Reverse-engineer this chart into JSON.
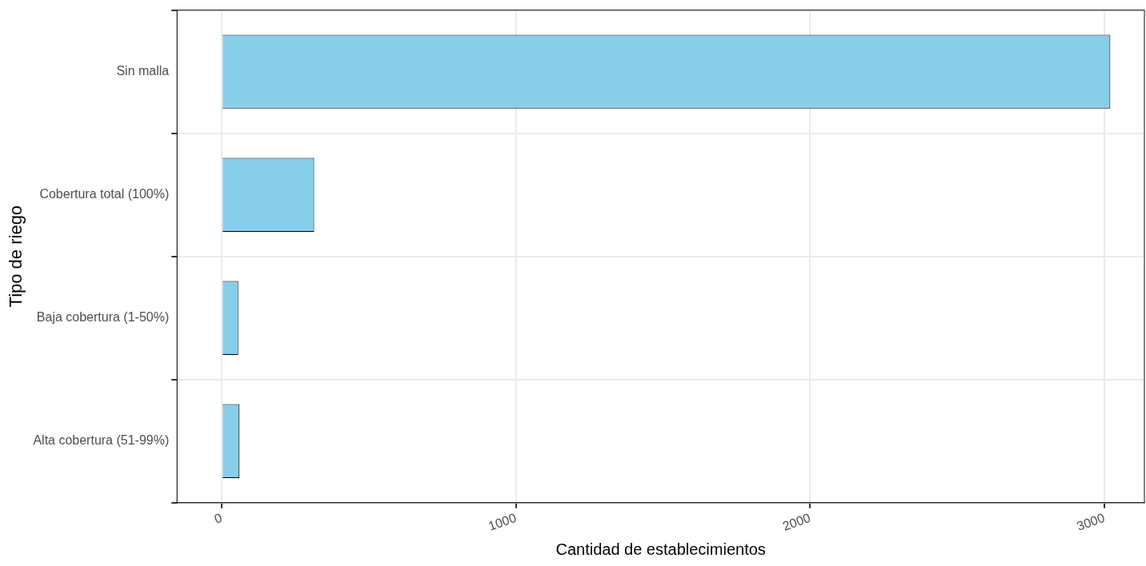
{
  "chart_data": {
    "type": "bar",
    "orientation": "horizontal",
    "xlabel": "Cantidad de establecimientos",
    "ylabel": "Tipo de riego",
    "categories": [
      "Sin malla",
      "Cobertura total (100%)",
      "Baja cobertura (1-50%)",
      "Alta cobertura (51-99%)"
    ],
    "values": [
      3020,
      314,
      56,
      60
    ],
    "color": "#87ceeb",
    "xlim": [
      -152,
      3136
    ],
    "xticks": [
      0,
      1000,
      2000,
      3000
    ],
    "grid": true
  }
}
